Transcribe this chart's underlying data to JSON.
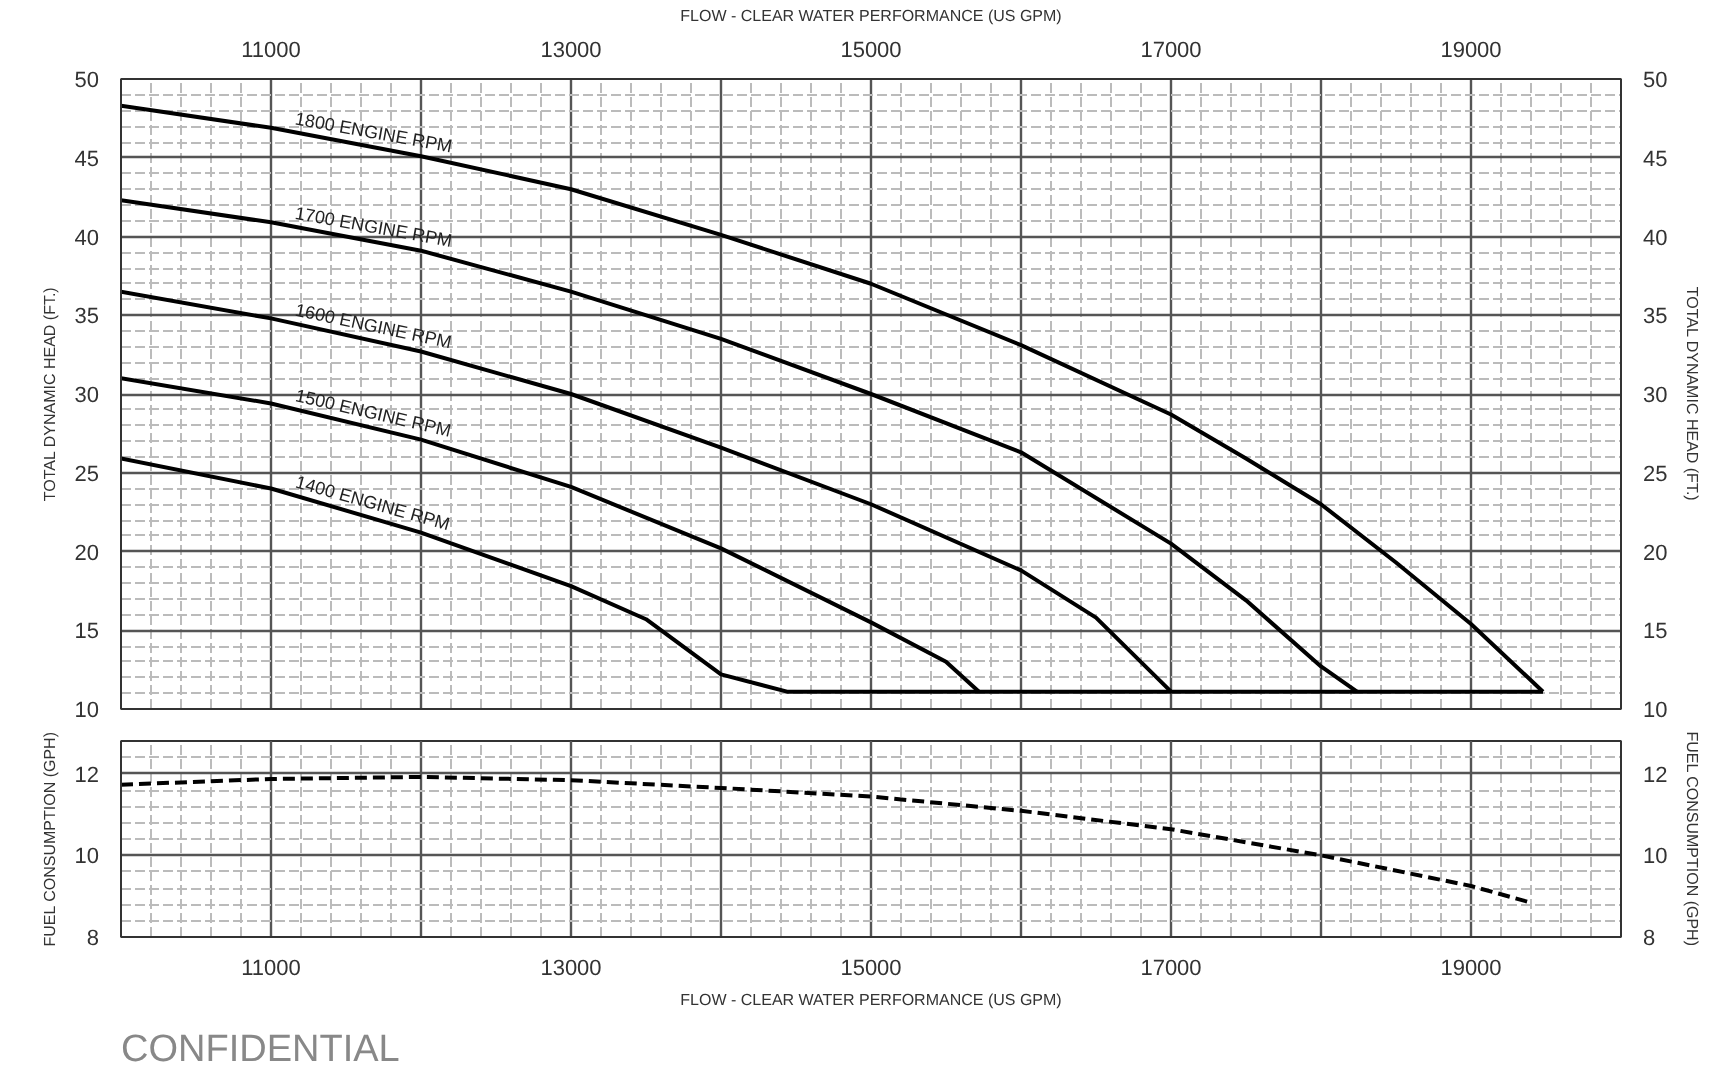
{
  "chart_data": [
    {
      "type": "line",
      "x2label": "FLOW - CLEAR WATER PERFORMANCE (US GPM)",
      "ylabel": "TOTAL DYNAMIC HEAD (FT.)",
      "y2label": "TOTAL DYNAMIC HEAD (FT.)",
      "xlim": [
        10000,
        20000
      ],
      "xticks": [
        {
          "value": 11000,
          "label": null
        },
        {
          "value": 12000,
          "label": null
        },
        {
          "value": 13000,
          "label": null
        },
        {
          "value": 14000,
          "label": null
        },
        {
          "value": 15000,
          "label": null
        },
        {
          "value": 16000,
          "label": null
        },
        {
          "value": 17000,
          "label": null
        },
        {
          "value": 18000,
          "label": null
        },
        {
          "value": 19000,
          "label": null
        }
      ],
      "x2lim": [
        10000,
        20000
      ],
      "x2ticks": [
        11000,
        13000,
        15000,
        17000,
        19000
      ],
      "ylim": [
        10,
        50
      ],
      "yticks": [
        10,
        15,
        20,
        25,
        30,
        35,
        40,
        45,
        50
      ],
      "y2lim": [
        10,
        50
      ],
      "y2ticks": [
        10,
        15,
        20,
        25,
        30,
        35,
        40,
        45,
        50
      ],
      "tick_labels": "y",
      "grid": true,
      "line_style": "solid",
      "series": [
        {
          "name": "1800 ENGINE RPM",
          "color": "#000000",
          "x": [
            10000,
            11000,
            12000,
            13000,
            14000,
            15000,
            16000,
            17000,
            17500,
            18000,
            18500,
            19000,
            19480
          ],
          "values": [
            48.3,
            46.9,
            45.1,
            43.0,
            40.1,
            37.0,
            33.1,
            28.7,
            25.9,
            23.0,
            19.3,
            15.4,
            11.1
          ]
        },
        {
          "name": "1700 ENGINE RPM",
          "color": "#000000",
          "x": [
            10000,
            11000,
            12000,
            13000,
            14000,
            15000,
            16000,
            17000,
            17500,
            18000,
            18240
          ],
          "values": [
            42.3,
            40.9,
            39.1,
            36.5,
            33.5,
            30.0,
            26.3,
            20.5,
            16.9,
            12.7,
            11.1
          ]
        },
        {
          "name": "1600 ENGINE RPM",
          "color": "#000000",
          "x": [
            10000,
            11000,
            12000,
            13000,
            14000,
            15000,
            16000,
            16500,
            17000
          ],
          "values": [
            36.5,
            34.8,
            32.7,
            30.0,
            26.6,
            23.0,
            18.8,
            15.8,
            11.1
          ]
        },
        {
          "name": "1500 ENGINE RPM",
          "color": "#000000",
          "x": [
            10000,
            11000,
            12000,
            13000,
            14000,
            15000,
            15500,
            15720
          ],
          "values": [
            31.0,
            29.4,
            27.1,
            24.1,
            20.2,
            15.5,
            13.0,
            11.1
          ]
        },
        {
          "name": "1400 ENGINE RPM",
          "color": "#000000",
          "x": [
            10000,
            11000,
            12000,
            13000,
            13500,
            14000,
            14440,
            19480
          ],
          "values": [
            25.9,
            24.0,
            21.2,
            17.8,
            15.7,
            12.2,
            11.1,
            11.1
          ]
        }
      ]
    },
    {
      "type": "line",
      "xlabel": "FLOW - CLEAR WATER PERFORMANCE (US GPM)",
      "ylabel": "FUEL CONSUMPTION (GPH)",
      "y2label": "FUEL CONSUMPTION (GPH)",
      "xlim": [
        10000,
        20000
      ],
      "xticks": [
        11000,
        {
          "value": 12000,
          "label": null
        },
        13000,
        {
          "value": 14000,
          "label": null
        },
        15000,
        {
          "value": 16000,
          "label": null
        },
        17000,
        {
          "value": 18000,
          "label": null
        },
        19000
      ],
      "ylim": [
        8,
        12.8
      ],
      "yticks": [
        8,
        10,
        12
      ],
      "y2lim": [
        8,
        12.8
      ],
      "y2ticks": [
        8,
        10,
        12
      ],
      "grid": true,
      "line_style": "dashed",
      "annotations": [
        "CONFIDENTIAL"
      ],
      "series": [
        {
          "color": "#000000",
          "x": [
            10000,
            11000,
            12000,
            13000,
            14000,
            15000,
            16000,
            17000,
            18000,
            19000,
            19410
          ],
          "values": [
            11.73,
            11.87,
            11.92,
            11.84,
            11.65,
            11.44,
            11.09,
            10.64,
            10.0,
            9.25,
            8.83
          ]
        }
      ]
    }
  ]
}
